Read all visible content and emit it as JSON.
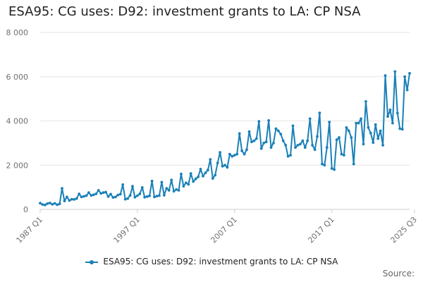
{
  "colors": {
    "series": "#1a80b8",
    "grid": "#e6e6e6",
    "axis": "#cccccc"
  },
  "footer": {
    "source_label": "Source:"
  },
  "chart_data": {
    "type": "line",
    "title": "ESA95: CG uses: D92: investment grants to LA: CP NSA",
    "xlabel": "",
    "ylabel": "",
    "ylim": [
      0,
      8000
    ],
    "yticks": [
      0,
      2000,
      4000,
      6000,
      8000
    ],
    "ytick_labels": [
      "0",
      "2 000",
      "4 000",
      "6 000",
      "8 000"
    ],
    "xticks": [
      {
        "index": 0,
        "label": "1987 Q1"
      },
      {
        "index": 40,
        "label": "1997 Q1"
      },
      {
        "index": 80,
        "label": "2007 Q1"
      },
      {
        "index": 120,
        "label": "2017 Q1"
      },
      {
        "index": 154,
        "label": "2025 Q3"
      }
    ],
    "legend_position": "bottom",
    "series": [
      {
        "name": "ESA95: CG uses: D92: investment grants to LA: CP NSA",
        "start": "1987 Q1",
        "frequency": "quarterly",
        "values": [
          280,
          220,
          200,
          260,
          290,
          230,
          270,
          210,
          250,
          950,
          380,
          560,
          400,
          460,
          450,
          490,
          700,
          560,
          590,
          620,
          760,
          630,
          660,
          700,
          860,
          720,
          760,
          780,
          580,
          690,
          540,
          560,
          650,
          690,
          1120,
          460,
          490,
          630,
          1050,
          550,
          620,
          700,
          990,
          550,
          580,
          610,
          1280,
          560,
          600,
          620,
          1230,
          640,
          950,
          860,
          1330,
          820,
          900,
          860,
          1600,
          1050,
          1200,
          1130,
          1620,
          1260,
          1380,
          1470,
          1820,
          1500,
          1650,
          1780,
          2260,
          1400,
          1550,
          2100,
          2580,
          1950,
          2000,
          1900,
          2500,
          2400,
          2450,
          2500,
          3430,
          2650,
          2500,
          2700,
          3520,
          3050,
          3100,
          3200,
          3980,
          2750,
          3000,
          3050,
          4020,
          2800,
          3000,
          3650,
          3550,
          3400,
          3100,
          2900,
          2400,
          2450,
          3780,
          2800,
          2900,
          2950,
          3100,
          2800,
          3100,
          4100,
          2900,
          2700,
          3300,
          4360,
          2050,
          2000,
          2800,
          3950,
          1850,
          1800,
          3150,
          3250,
          2500,
          2450,
          3700,
          3550,
          3250,
          2050,
          3900,
          3900,
          4100,
          2950,
          4880,
          3700,
          3450,
          3020,
          3830,
          3200,
          3550,
          2900,
          6050,
          4200,
          4500,
          3900,
          6230,
          4350,
          3650,
          3620,
          6000,
          5400,
          6150
        ]
      }
    ]
  }
}
